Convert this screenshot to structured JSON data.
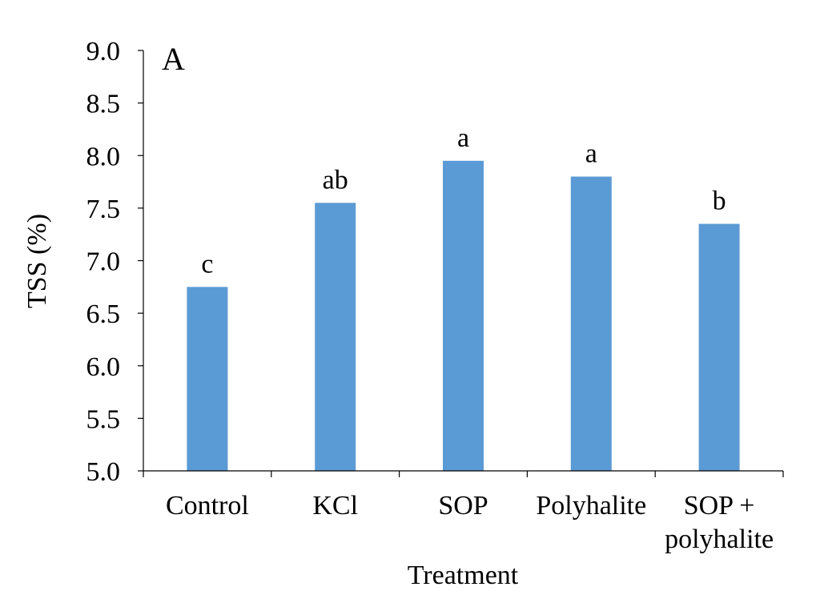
{
  "chart_data": {
    "type": "bar",
    "panel_label": "A",
    "title": "",
    "xlabel": "Treatment",
    "ylabel": "TSS (%)",
    "ylim": [
      5.0,
      9.0
    ],
    "yticks": [
      "5.0",
      "5.5",
      "6.0",
      "6.5",
      "7.0",
      "7.5",
      "8.0",
      "8.5",
      "9.0"
    ],
    "categories": [
      [
        "Control"
      ],
      [
        "KCl"
      ],
      [
        "SOP"
      ],
      [
        "Polyhalite"
      ],
      [
        "SOP +",
        "polyhalite"
      ]
    ],
    "values": [
      6.75,
      7.55,
      7.95,
      7.8,
      7.35
    ],
    "significance_letters": [
      "c",
      "ab",
      "a",
      "a",
      "b"
    ],
    "bar_color": "#5b9bd5",
    "grid": false,
    "legend": "none"
  }
}
